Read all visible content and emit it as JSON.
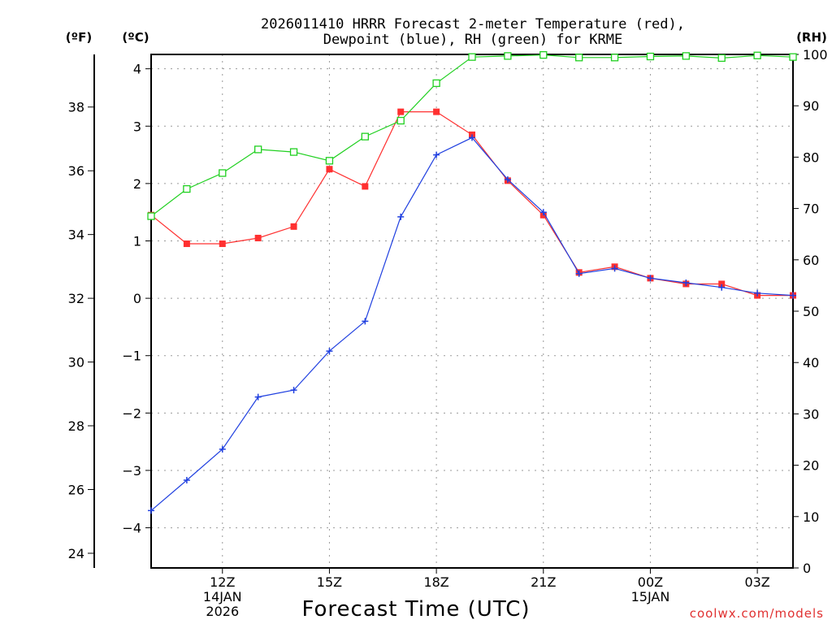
{
  "chart_data": {
    "type": "line",
    "title_line1": "2026011410 HRRR Forecast 2-meter Temperature (red),",
    "title_line2": "Dewpoint (blue), RH (green) for KRME",
    "xlabel": "Forecast Time (UTC)",
    "credit": "coolwx.com/models",
    "unit_f": "(ºF)",
    "unit_c": "(ºC)",
    "unit_rh": "(RH)",
    "x": [
      10,
      11,
      12,
      13,
      14,
      15,
      16,
      17,
      18,
      19,
      20,
      21,
      22,
      23,
      24,
      25,
      26,
      27,
      28
    ],
    "xlim": [
      10,
      28
    ],
    "ylim_c": [
      -4.7,
      4.25
    ],
    "ylim_f": [
      23.54,
      39.65
    ],
    "ylim_rh": [
      0,
      100
    ],
    "x_ticks": [
      {
        "x": 12,
        "lines": [
          "12Z",
          "14JAN",
          "2026"
        ]
      },
      {
        "x": 15,
        "lines": [
          "15Z"
        ]
      },
      {
        "x": 18,
        "lines": [
          "18Z"
        ]
      },
      {
        "x": 21,
        "lines": [
          "21Z"
        ]
      },
      {
        "x": 24,
        "lines": [
          "00Z",
          "15JAN"
        ]
      },
      {
        "x": 27,
        "lines": [
          "03Z"
        ]
      }
    ],
    "c_ticks": [
      -4,
      -3,
      -2,
      -1,
      0,
      1,
      2,
      3,
      4
    ],
    "c_tick_labels": [
      "−4",
      "−3",
      "−2",
      "−1",
      "0",
      "1",
      "2",
      "3",
      "4"
    ],
    "f_ticks": [
      24,
      26,
      28,
      30,
      32,
      34,
      36,
      38
    ],
    "f_tick_labels": [
      "24",
      "26",
      "28",
      "30",
      "32",
      "34",
      "36",
      "38"
    ],
    "rh_ticks": [
      0,
      10,
      20,
      30,
      40,
      50,
      60,
      70,
      80,
      90,
      100
    ],
    "rh_tick_labels": [
      "0",
      "10",
      "20",
      "30",
      "40",
      "50",
      "60",
      "70",
      "80",
      "90",
      "100"
    ],
    "series": [
      {
        "name": "Temperature",
        "unit": "C",
        "color": "#ff3030",
        "marker": "filled-square",
        "values": [
          1.45,
          0.95,
          0.95,
          1.05,
          1.25,
          2.25,
          1.95,
          3.25,
          3.25,
          2.85,
          2.05,
          1.45,
          0.45,
          0.55,
          0.35,
          0.25,
          0.25,
          0.05,
          0.05
        ]
      },
      {
        "name": "Dewpoint",
        "unit": "C",
        "color": "#2040e0",
        "marker": "plus",
        "values": [
          -3.7,
          -3.17,
          -2.63,
          -1.72,
          -1.6,
          -0.92,
          -0.4,
          1.42,
          2.5,
          2.8,
          2.07,
          1.5,
          0.43,
          0.52,
          0.35,
          0.27,
          0.19,
          0.09,
          0.05
        ]
      },
      {
        "name": "RH",
        "unit": "%",
        "color": "#20d020",
        "marker": "open-square",
        "values": [
          68.5,
          73.8,
          76.9,
          81.5,
          81.0,
          79.3,
          84.0,
          87.1,
          94.4,
          99.5,
          99.7,
          99.9,
          99.4,
          99.4,
          99.6,
          99.7,
          99.3,
          99.8,
          99.5
        ]
      }
    ]
  }
}
